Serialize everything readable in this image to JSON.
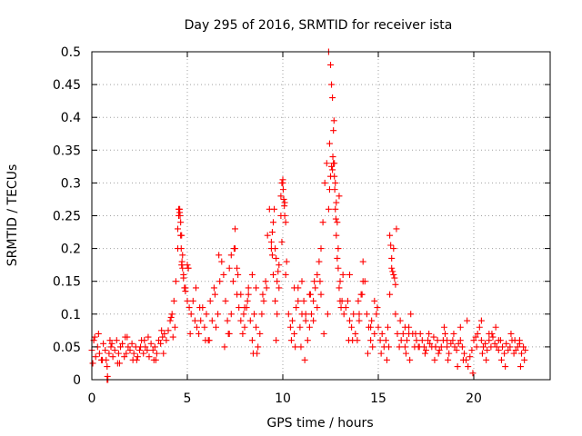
{
  "chart_data": {
    "type": "scatter",
    "title": "Day 295 of 2016, SRMTID for receiver ista",
    "xlabel": "GPS time / hours",
    "ylabel": "SRMTID / TECUs",
    "xlim": [
      0,
      24
    ],
    "ylim": [
      0,
      0.5
    ],
    "xticks": [
      0,
      5,
      10,
      15,
      20
    ],
    "xtick_labels": [
      "0",
      "5",
      "10",
      "15",
      "20"
    ],
    "yticks": [
      0,
      0.05,
      0.1,
      0.15,
      0.2,
      0.25,
      0.3,
      0.35,
      0.4,
      0.45,
      0.5
    ],
    "ytick_labels": [
      "0",
      "0.05",
      "0.1",
      "0.15",
      "0.2",
      "0.25",
      "0.3",
      "0.35",
      "0.4",
      "0.45",
      "0.5"
    ],
    "grid": true,
    "marker": "+",
    "series": [
      {
        "name": "SRMTID",
        "color": "#ff0000",
        "x": [
          0.0,
          0.1,
          0.2,
          0.3,
          0.4,
          0.5,
          0.6,
          0.7,
          0.8,
          0.9,
          1.0,
          1.1,
          1.2,
          1.3,
          1.4,
          1.5,
          1.6,
          1.7,
          1.8,
          1.9,
          2.0,
          2.1,
          2.2,
          2.3,
          2.4,
          2.5,
          2.6,
          2.7,
          2.8,
          2.9,
          3.0,
          3.1,
          3.2,
          3.3,
          3.4,
          3.5,
          3.6,
          3.7,
          3.8,
          3.9,
          4.0,
          4.1,
          4.2,
          4.3,
          4.4,
          4.5,
          4.55,
          4.6,
          4.65,
          4.7,
          4.75,
          4.8,
          4.9,
          5.0,
          5.1,
          5.2,
          5.3,
          5.4,
          5.5,
          5.6,
          5.7,
          5.8,
          5.9,
          6.0,
          6.1,
          6.2,
          6.3,
          6.4,
          6.5,
          6.6,
          6.7,
          6.8,
          6.9,
          7.0,
          7.1,
          7.2,
          7.3,
          7.4,
          7.5,
          7.6,
          7.7,
          7.8,
          7.9,
          8.0,
          8.1,
          8.2,
          8.3,
          8.4,
          8.5,
          8.6,
          8.7,
          8.8,
          8.9,
          9.0,
          9.1,
          9.2,
          9.3,
          9.4,
          9.5,
          9.6,
          9.7,
          9.8,
          9.9,
          10.0,
          10.1,
          10.2,
          10.3,
          10.4,
          10.5,
          10.6,
          10.7,
          10.8,
          10.9,
          11.0,
          11.1,
          11.2,
          11.3,
          11.4,
          11.5,
          11.6,
          11.7,
          11.8,
          11.9,
          12.0,
          12.1,
          12.2,
          12.3,
          12.4,
          12.5,
          12.55,
          12.6,
          12.65,
          12.7,
          12.75,
          12.8,
          12.85,
          12.9,
          13.0,
          13.1,
          13.2,
          13.3,
          13.4,
          13.5,
          13.6,
          13.7,
          13.8,
          13.9,
          14.0,
          14.1,
          14.2,
          14.3,
          14.4,
          14.5,
          14.6,
          14.7,
          14.8,
          14.9,
          15.0,
          15.1,
          15.2,
          15.3,
          15.4,
          15.5,
          15.6,
          15.7,
          15.8,
          15.9,
          16.0,
          16.1,
          16.2,
          16.3,
          16.4,
          16.5,
          16.6,
          16.7,
          16.8,
          16.9,
          17.0,
          17.1,
          17.2,
          17.3,
          17.4,
          17.5,
          17.6,
          17.7,
          17.8,
          17.9,
          18.0,
          18.1,
          18.2,
          18.3,
          18.4,
          18.5,
          18.6,
          18.7,
          18.8,
          18.9,
          19.0,
          19.1,
          19.2,
          19.3,
          19.4,
          19.5,
          19.6,
          19.7,
          19.8,
          19.9,
          20.0,
          20.1,
          20.2,
          20.3,
          20.4,
          20.5,
          20.6,
          20.7,
          20.8,
          20.9,
          21.0,
          21.1,
          21.2,
          21.3,
          21.4,
          21.5,
          21.6,
          21.7,
          21.8,
          21.9,
          22.0,
          22.1,
          22.2,
          22.3,
          22.4,
          22.5,
          22.6,
          22.7,
          0.05,
          0.35,
          0.75,
          1.05,
          1.45,
          1.85,
          2.35,
          2.75,
          3.25,
          3.65,
          4.25,
          5.05,
          5.45,
          5.95,
          6.45,
          6.95,
          7.45,
          7.95,
          8.45,
          8.95,
          9.45,
          9.95,
          10.45,
          10.95,
          11.45,
          11.95,
          12.45,
          12.95,
          13.45,
          13.95,
          14.45,
          14.95,
          15.45,
          15.95,
          16.45,
          16.95,
          17.45,
          17.95,
          18.45,
          18.95,
          19.45,
          19.95,
          20.45,
          20.95,
          21.45,
          21.95,
          22.45,
          0.15,
          0.55,
          0.95,
          1.35,
          1.75,
          2.15,
          2.55,
          2.95,
          3.35,
          3.75,
          4.15,
          4.35,
          5.15,
          5.65,
          6.15,
          6.65,
          7.15,
          7.65,
          8.15,
          8.65,
          9.15,
          9.65,
          10.15,
          10.65,
          11.15,
          11.65,
          12.15,
          12.35,
          13.15,
          13.65,
          14.15,
          14.65,
          15.15,
          15.55,
          16.15,
          16.65,
          17.15,
          17.65,
          18.15,
          18.65,
          19.15,
          19.65,
          20.15,
          20.65,
          21.15,
          21.65,
          22.15,
          22.65,
          4.5,
          4.55,
          4.6,
          4.62,
          4.65,
          4.68,
          4.7,
          4.72,
          4.75,
          4.8,
          4.85,
          4.9,
          5.0,
          5.05,
          9.4,
          9.45,
          9.5,
          9.55,
          9.6,
          9.65,
          9.7,
          9.75,
          9.8,
          9.9,
          9.95,
          10.0,
          10.02,
          10.05,
          10.08,
          10.1,
          10.15,
          12.4,
          12.45,
          12.5,
          12.55,
          12.6,
          12.62,
          12.65,
          12.68,
          12.7,
          12.72,
          12.75,
          12.78,
          12.8,
          12.85,
          12.9,
          12.95,
          13.0,
          13.05,
          15.6,
          15.65,
          15.7,
          15.75,
          15.8,
          15.85,
          15.9,
          7.2,
          7.3,
          7.5,
          7.6,
          7.8,
          8.0,
          8.2,
          8.4,
          8.6,
          10.6,
          10.8,
          11.0,
          11.2,
          11.4,
          11.6,
          11.8,
          12.0,
          13.5,
          14.0,
          14.2,
          14.6,
          14.8,
          16.4,
          16.6,
          18.0,
          18.6,
          19.3,
          20.4,
          20.8,
          21.3,
          22.4,
          0.8,
          0.82,
          0.84
        ],
        "y": [
          0.045,
          0.06,
          0.035,
          0.05,
          0.04,
          0.03,
          0.055,
          0.045,
          0.02,
          0.04,
          0.05,
          0.035,
          0.045,
          0.06,
          0.04,
          0.05,
          0.055,
          0.035,
          0.04,
          0.05,
          0.045,
          0.055,
          0.04,
          0.05,
          0.035,
          0.045,
          0.06,
          0.04,
          0.05,
          0.045,
          0.035,
          0.055,
          0.045,
          0.05,
          0.04,
          0.06,
          0.055,
          0.065,
          0.07,
          0.06,
          0.075,
          0.09,
          0.1,
          0.12,
          0.15,
          0.2,
          0.25,
          0.26,
          0.24,
          0.22,
          0.19,
          0.16,
          0.14,
          0.12,
          0.11,
          0.1,
          0.12,
          0.09,
          0.08,
          0.07,
          0.09,
          0.11,
          0.08,
          0.1,
          0.06,
          0.12,
          0.09,
          0.14,
          0.08,
          0.1,
          0.15,
          0.18,
          0.16,
          0.12,
          0.09,
          0.07,
          0.1,
          0.15,
          0.23,
          0.13,
          0.11,
          0.09,
          0.07,
          0.08,
          0.11,
          0.14,
          0.09,
          0.06,
          0.1,
          0.08,
          0.05,
          0.07,
          0.1,
          0.12,
          0.15,
          0.22,
          0.26,
          0.2,
          0.16,
          0.12,
          0.1,
          0.14,
          0.25,
          0.3,
          0.27,
          0.18,
          0.1,
          0.08,
          0.09,
          0.07,
          0.11,
          0.14,
          0.08,
          0.1,
          0.12,
          0.09,
          0.06,
          0.08,
          0.1,
          0.12,
          0.14,
          0.16,
          0.18,
          0.2,
          0.24,
          0.3,
          0.33,
          0.5,
          0.48,
          0.45,
          0.43,
          0.38,
          0.33,
          0.3,
          0.27,
          0.24,
          0.2,
          0.15,
          0.12,
          0.1,
          0.11,
          0.12,
          0.09,
          0.08,
          0.1,
          0.07,
          0.06,
          0.09,
          0.13,
          0.18,
          0.15,
          0.1,
          0.08,
          0.06,
          0.05,
          0.07,
          0.1,
          0.08,
          0.06,
          0.07,
          0.05,
          0.06,
          0.08,
          0.13,
          0.17,
          0.2,
          0.1,
          0.07,
          0.05,
          0.06,
          0.07,
          0.05,
          0.06,
          0.08,
          0.1,
          0.07,
          0.05,
          0.06,
          0.05,
          0.07,
          0.06,
          0.05,
          0.045,
          0.06,
          0.055,
          0.05,
          0.065,
          0.05,
          0.06,
          0.045,
          0.05,
          0.06,
          0.07,
          0.05,
          0.04,
          0.055,
          0.06,
          0.05,
          0.045,
          0.055,
          0.06,
          0.05,
          0.04,
          0.03,
          0.02,
          0.035,
          0.045,
          0.06,
          0.065,
          0.07,
          0.08,
          0.06,
          0.05,
          0.055,
          0.045,
          0.06,
          0.05,
          0.065,
          0.055,
          0.05,
          0.045,
          0.06,
          0.05,
          0.04,
          0.055,
          0.045,
          0.05,
          0.06,
          0.04,
          0.045,
          0.05,
          0.055,
          0.04,
          0.05,
          0.045,
          0.025,
          0.07,
          0.03,
          0.055,
          0.025,
          0.065,
          0.03,
          0.06,
          0.03,
          0.075,
          0.065,
          0.17,
          0.14,
          0.06,
          0.13,
          0.05,
          0.2,
          0.1,
          0.04,
          0.13,
          0.19,
          0.21,
          0.06,
          0.05,
          0.13,
          0.15,
          0.36,
          0.28,
          0.06,
          0.12,
          0.04,
          0.11,
          0.03,
          0.23,
          0.04,
          0.07,
          0.04,
          0.03,
          0.08,
          0.07,
          0.03,
          0.01,
          0.04,
          0.07,
          0.03,
          0.07,
          0.02,
          0.065,
          0.03,
          0.06,
          0.025,
          0.065,
          0.03,
          0.05,
          0.065,
          0.03,
          0.04,
          0.095,
          0.08,
          0.07,
          0.11,
          0.06,
          0.19,
          0.07,
          0.16,
          0.12,
          0.04,
          0.14,
          0.06,
          0.16,
          0.05,
          0.03,
          0.15,
          0.07,
          0.1,
          0.16,
          0.06,
          0.13,
          0.09,
          0.04,
          0.05,
          0.09,
          0.03,
          0.05,
          0.07,
          0.04,
          0.03,
          0.02,
          0.09,
          0.05,
          0.03,
          0.08,
          0.02,
          0.06,
          0.03,
          0.23,
          0.26,
          0.255,
          0.25,
          0.22,
          0.2,
          0.175,
          0.18,
          0.17,
          0.155,
          0.14,
          0.135,
          0.175,
          0.17,
          0.21,
          0.225,
          0.24,
          0.26,
          0.2,
          0.185,
          0.15,
          0.165,
          0.175,
          0.28,
          0.3,
          0.305,
          0.29,
          0.275,
          0.265,
          0.25,
          0.24,
          0.26,
          0.29,
          0.31,
          0.325,
          0.32,
          0.34,
          0.33,
          0.395,
          0.31,
          0.29,
          0.26,
          0.245,
          0.22,
          0.185,
          0.17,
          0.14,
          0.12,
          0.11,
          0.22,
          0.205,
          0.185,
          0.165,
          0.16,
          0.155,
          0.145,
          0.17,
          0.19,
          0.2,
          0.17,
          0.13,
          0.11,
          0.13,
          0.16,
          0.14,
          0.14,
          0.12,
          0.15,
          0.1,
          0.13,
          0.09,
          0.11,
          0.13,
          0.16,
          0.1,
          0.15,
          0.08,
          0.12,
          0.08,
          0.07,
          0.05,
          0.06,
          0.08,
          0.09,
          0.07,
          0.06,
          0.06,
          0.0,
          0.005,
          0.0
        ]
      }
    ]
  }
}
